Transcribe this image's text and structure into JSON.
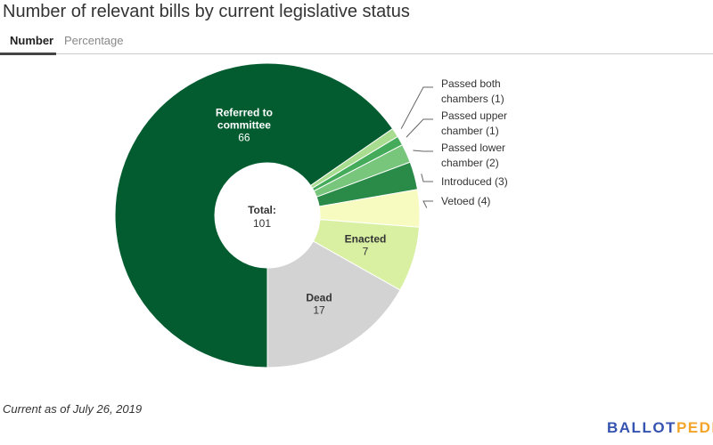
{
  "title": "Number of relevant bills by current legislative status",
  "tabs": [
    {
      "label": "Number"
    },
    {
      "label": "Percentage"
    }
  ],
  "footnote": "Current as of July 26, 2019",
  "logo": {
    "part1": "BALLOT",
    "part2": "PEDIA"
  },
  "chart_data": {
    "type": "pie",
    "donut": true,
    "title": "Number of relevant bills by current legislative status",
    "center_label": {
      "title": "Total:",
      "value": "101"
    },
    "slices": [
      {
        "name": "Passed both chambers",
        "label_lines": [
          "Passed both",
          "chambers (1)"
        ],
        "value": 1,
        "color": "#a8dc8f",
        "label_outside": true
      },
      {
        "name": "Passed upper chamber",
        "label_lines": [
          "Passed upper",
          "chamber (1)"
        ],
        "value": 1,
        "color": "#44ab5a",
        "label_outside": true
      },
      {
        "name": "Passed lower chamber",
        "label_lines": [
          "Passed lower",
          "chamber (2)"
        ],
        "value": 2,
        "color": "#78c67c",
        "label_outside": true
      },
      {
        "name": "Introduced",
        "label_lines": [
          "Introduced (3)"
        ],
        "value": 3,
        "color": "#2a8a47",
        "label_outside": true
      },
      {
        "name": "Vetoed",
        "label_lines": [
          "Vetoed (4)"
        ],
        "value": 4,
        "color": "#f7fbbf",
        "label_outside": true
      },
      {
        "name": "Enacted",
        "label_lines": [
          "Enacted",
          "7"
        ],
        "value": 7,
        "color": "#d9f0a3",
        "label_outside": false
      },
      {
        "name": "Dead",
        "label_lines": [
          "Dead",
          "17"
        ],
        "value": 17,
        "color": "#d3d3d3",
        "label_outside": false
      },
      {
        "name": "Referred to committee",
        "label_lines": [
          "Referred to",
          "committee",
          "66"
        ],
        "value": 66,
        "color": "#035c30",
        "label_outside": false,
        "light_text": true
      }
    ]
  }
}
